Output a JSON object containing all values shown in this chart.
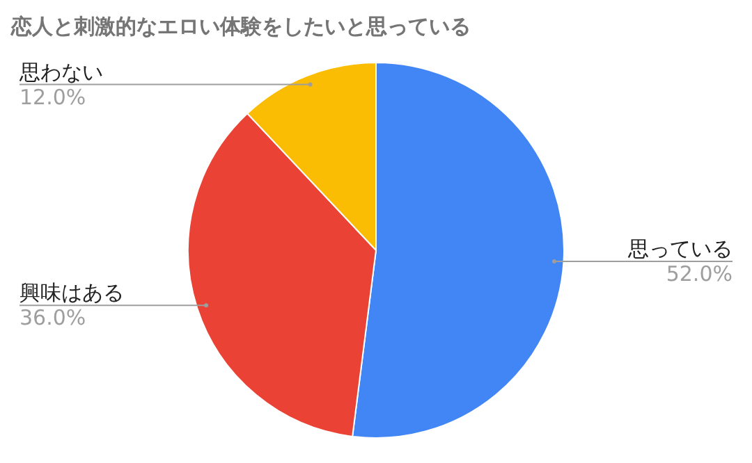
{
  "chart_data": {
    "type": "pie",
    "title": "恋人と刺激的なエロい体験をしたいと思っている",
    "categories": [
      "思っている",
      "興味はある",
      "思わない"
    ],
    "values": [
      52.0,
      36.0,
      12.0
    ],
    "value_labels": [
      "52.0%",
      "36.0%",
      "12.0%"
    ],
    "colors": [
      "#4285f4",
      "#ea4335",
      "#fbbc04"
    ],
    "legend": false
  }
}
